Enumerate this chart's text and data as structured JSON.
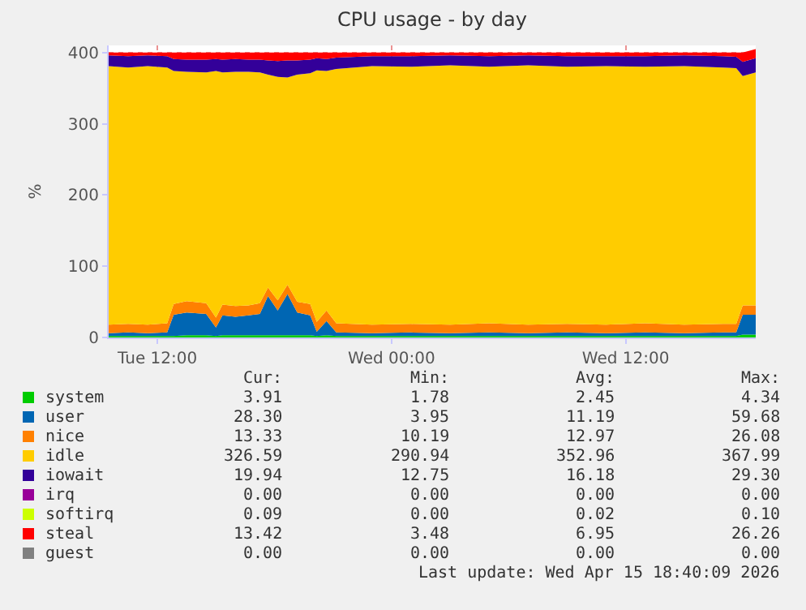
{
  "chart_data": {
    "type": "area",
    "stacked": true,
    "title": "CPU usage - by day",
    "ylabel": "%",
    "x": [
      "2026-04-14T09:30",
      "2026-04-14T10:30",
      "2026-04-14T11:30",
      "2026-04-14T12:30",
      "2026-04-14T12:50",
      "2026-04-14T13:30",
      "2026-04-14T14:30",
      "2026-04-14T15:00",
      "2026-04-14T15:20",
      "2026-04-14T16:00",
      "2026-04-14T16:40",
      "2026-04-14T17:15",
      "2026-04-14T17:40",
      "2026-04-14T18:10",
      "2026-04-14T18:40",
      "2026-04-14T19:10",
      "2026-04-14T19:50",
      "2026-04-14T20:10",
      "2026-04-14T20:40",
      "2026-04-14T21:10",
      "2026-04-14T23:00",
      "2026-04-15T01:00",
      "2026-04-15T03:00",
      "2026-04-15T05:00",
      "2026-04-15T07:00",
      "2026-04-15T09:00",
      "2026-04-15T11:00",
      "2026-04-15T13:00",
      "2026-04-15T15:00",
      "2026-04-15T17:00",
      "2026-04-15T17:40",
      "2026-04-15T18:00",
      "2026-04-15T18:40"
    ],
    "series": [
      {
        "name": "system",
        "color": "#00cc00",
        "values": [
          2,
          2,
          2,
          2,
          2,
          3,
          3,
          2,
          3,
          3,
          3,
          3,
          3,
          3,
          3,
          3,
          3,
          2,
          3,
          2,
          2,
          2,
          2,
          2,
          2,
          2,
          2,
          2,
          2,
          2,
          2,
          4,
          4
        ]
      },
      {
        "name": "user",
        "color": "#0066b3",
        "values": [
          4,
          5,
          4,
          5,
          30,
          32,
          30,
          12,
          28,
          26,
          28,
          30,
          55,
          35,
          58,
          32,
          28,
          6,
          20,
          5,
          4,
          5,
          4,
          5,
          4,
          5,
          4,
          5,
          4,
          5,
          5,
          28,
          28
        ]
      },
      {
        "name": "nice",
        "color": "#ff8000",
        "values": [
          12,
          12,
          12,
          13,
          15,
          16,
          15,
          14,
          15,
          15,
          14,
          15,
          12,
          14,
          13,
          15,
          16,
          14,
          15,
          13,
          12,
          12,
          12,
          13,
          12,
          12,
          12,
          13,
          12,
          12,
          12,
          13,
          13
        ]
      },
      {
        "name": "idle",
        "color": "#ffcc00",
        "values": [
          363,
          360,
          363,
          359,
          327,
          322,
          324,
          346,
          326,
          329,
          328,
          324,
          299,
          314,
          291,
          319,
          324,
          353,
          336,
          357,
          363,
          361,
          364,
          360,
          364,
          361,
          363,
          360,
          363,
          360,
          359,
          322,
          327
        ]
      },
      {
        "name": "iowait",
        "color": "#330099",
        "values": [
          15,
          16,
          15,
          16,
          17,
          17,
          18,
          17,
          18,
          18,
          17,
          18,
          20,
          22,
          24,
          20,
          19,
          17,
          17,
          16,
          14,
          15,
          14,
          15,
          14,
          15,
          14,
          15,
          15,
          16,
          16,
          20,
          20
        ]
      },
      {
        "name": "irq",
        "color": "#990099",
        "values": [
          null,
          null,
          null,
          null,
          null,
          null,
          null,
          null,
          null,
          null,
          null,
          null,
          null,
          null,
          null,
          null,
          null,
          null,
          null,
          null,
          null,
          null,
          null,
          null,
          null,
          null,
          null,
          null,
          null,
          null,
          null,
          null,
          null
        ]
      },
      {
        "name": "softirq",
        "color": "#ccff00",
        "values": [
          null,
          null,
          null,
          null,
          null,
          null,
          null,
          null,
          null,
          null,
          null,
          null,
          null,
          null,
          null,
          null,
          null,
          null,
          null,
          null,
          null,
          null,
          null,
          null,
          null,
          null,
          null,
          null,
          null,
          null,
          null,
          null,
          null
        ]
      },
      {
        "name": "steal",
        "color": "#ff0000",
        "values": [
          4,
          5,
          4,
          5,
          9,
          10,
          10,
          9,
          10,
          9,
          10,
          10,
          11,
          12,
          11,
          11,
          10,
          8,
          9,
          7,
          5,
          5,
          4,
          5,
          4,
          5,
          5,
          5,
          4,
          5,
          6,
          13,
          13
        ]
      },
      {
        "name": "guest",
        "color": "#808080",
        "values": [
          null,
          null,
          null,
          null,
          null,
          null,
          null,
          null,
          null,
          null,
          null,
          null,
          null,
          null,
          null,
          null,
          null,
          null,
          null,
          null,
          null,
          null,
          null,
          null,
          null,
          null,
          null,
          null,
          null,
          null,
          null,
          null,
          null
        ]
      }
    ],
    "xlim": [
      "2026-04-14T09:30",
      "2026-04-15T18:40"
    ],
    "xticks": [
      {
        "value": "2026-04-14T12:00",
        "label": "Tue 12:00"
      },
      {
        "value": "2026-04-15T00:00",
        "label": "Wed 00:00"
      },
      {
        "value": "2026-04-15T12:00",
        "label": "Wed 12:00"
      }
    ],
    "ylim": [
      0,
      410
    ],
    "yticks": [
      0,
      100,
      200,
      300,
      400
    ],
    "grid": true,
    "legend": "bottom",
    "annotations": [
      "Cur:",
      "Min:",
      "Avg:",
      "Max:",
      "3.91",
      "1.78",
      "2.45",
      "4.34",
      "28.30",
      "3.95",
      "11.19",
      "59.68",
      "13.33",
      "10.19",
      "12.97",
      "26.08",
      "326.59",
      "290.94",
      "352.96",
      "367.99",
      "19.94",
      "12.75",
      "16.18",
      "29.30",
      "0.00",
      "0.00",
      "0.00",
      "0.00",
      "0.09",
      "0.00",
      "0.02",
      "0.10",
      "13.42",
      "3.48",
      "6.95",
      "26.26",
      "0.00",
      "0.00",
      "0.00",
      "0.00",
      "Last update: Wed Apr 15 18:40:09 2026"
    ]
  }
}
